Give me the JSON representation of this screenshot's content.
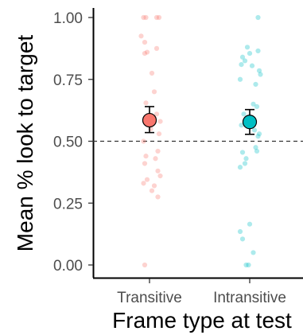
{
  "chart_data": {
    "type": "scatter",
    "title": "",
    "xlabel": "Frame type at test",
    "ylabel": "Mean % look to target",
    "categories": [
      "Transitive",
      "Intransitive"
    ],
    "ylim": [
      -0.05,
      1.05
    ],
    "yticks": [
      0.0,
      0.25,
      0.5,
      0.75,
      1.0
    ],
    "ytick_labels": [
      "0.00",
      "0.25",
      "0.50",
      "0.75",
      "1.00"
    ],
    "reference_line": {
      "y": 0.5,
      "style": "dashed"
    },
    "grid": false,
    "legend": "none",
    "series": [
      {
        "category": "Transitive",
        "color": "#F8766D",
        "mean": 0.585,
        "ci_low": 0.535,
        "ci_high": 0.64,
        "points": [
          {
            "dx": -0.05,
            "y": 1.0
          },
          {
            "dx": -0.03,
            "y": 1.0
          },
          {
            "dx": 0.06,
            "y": 1.0
          },
          {
            "dx": 0.08,
            "y": 1.0
          },
          {
            "dx": -0.07,
            "y": 0.925
          },
          {
            "dx": -0.04,
            "y": 0.9
          },
          {
            "dx": 0.06,
            "y": 0.875
          },
          {
            "dx": -0.02,
            "y": 0.86
          },
          {
            "dx": -0.04,
            "y": 0.855
          },
          {
            "dx": 0.02,
            "y": 0.775
          },
          {
            "dx": 0.04,
            "y": 0.7
          },
          {
            "dx": -0.03,
            "y": 0.655
          },
          {
            "dx": 0.06,
            "y": 0.61
          },
          {
            "dx": 0.09,
            "y": 0.58
          },
          {
            "dx": 0.01,
            "y": 0.55
          },
          {
            "dx": 0.08,
            "y": 0.53
          },
          {
            "dx": -0.05,
            "y": 0.5
          },
          {
            "dx": 0.07,
            "y": 0.46
          },
          {
            "dx": -0.03,
            "y": 0.44
          },
          {
            "dx": 0.05,
            "y": 0.43
          },
          {
            "dx": -0.04,
            "y": 0.41
          },
          {
            "dx": 0.07,
            "y": 0.38
          },
          {
            "dx": 0.09,
            "y": 0.36
          },
          {
            "dx": -0.02,
            "y": 0.345
          },
          {
            "dx": -0.05,
            "y": 0.33
          },
          {
            "dx": 0.04,
            "y": 0.32
          },
          {
            "dx": 0.02,
            "y": 0.3
          },
          {
            "dx": 0.07,
            "y": 0.275
          },
          {
            "dx": -0.04,
            "y": 0.0
          }
        ]
      },
      {
        "category": "Intransitive",
        "color": "#00BFC4",
        "mean": 0.578,
        "ci_low": 0.528,
        "ci_high": 0.628,
        "points": [
          {
            "dx": 0.07,
            "y": 1.0
          },
          {
            "dx": -0.02,
            "y": 0.88
          },
          {
            "dx": 0.07,
            "y": 0.865
          },
          {
            "dx": 0.0,
            "y": 0.855
          },
          {
            "dx": -0.06,
            "y": 0.84
          },
          {
            "dx": -0.04,
            "y": 0.825
          },
          {
            "dx": -0.07,
            "y": 0.81
          },
          {
            "dx": 0.02,
            "y": 0.805
          },
          {
            "dx": 0.08,
            "y": 0.785
          },
          {
            "dx": 0.09,
            "y": 0.77
          },
          {
            "dx": -0.08,
            "y": 0.75
          },
          {
            "dx": 0.05,
            "y": 0.73
          },
          {
            "dx": 0.03,
            "y": 0.65
          },
          {
            "dx": 0.06,
            "y": 0.64
          },
          {
            "dx": -0.05,
            "y": 0.61
          },
          {
            "dx": -0.02,
            "y": 0.595
          },
          {
            "dx": -0.07,
            "y": 0.565
          },
          {
            "dx": 0.04,
            "y": 0.545
          },
          {
            "dx": 0.08,
            "y": 0.53
          },
          {
            "dx": 0.07,
            "y": 0.52
          },
          {
            "dx": 0.05,
            "y": 0.475
          },
          {
            "dx": 0.06,
            "y": 0.46
          },
          {
            "dx": -0.06,
            "y": 0.455
          },
          {
            "dx": -0.03,
            "y": 0.43
          },
          {
            "dx": -0.04,
            "y": 0.41
          },
          {
            "dx": -0.08,
            "y": 0.395
          },
          {
            "dx": 0.0,
            "y": 0.165
          },
          {
            "dx": -0.08,
            "y": 0.135
          },
          {
            "dx": -0.06,
            "y": 0.105
          },
          {
            "dx": 0.03,
            "y": 0.05
          },
          {
            "dx": -0.03,
            "y": 0.0
          },
          {
            "dx": -0.01,
            "y": 0.0
          }
        ]
      }
    ]
  }
}
